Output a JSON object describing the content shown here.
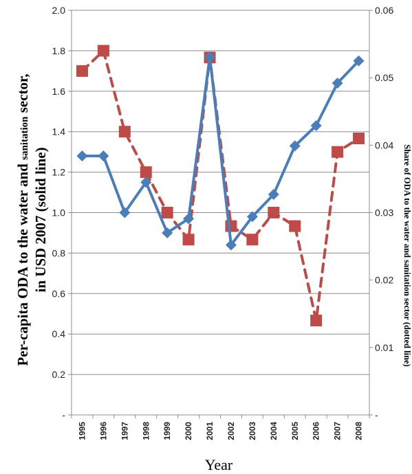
{
  "chart_data": {
    "type": "line",
    "x": [
      "1995",
      "1996",
      "1997",
      "1998",
      "1999",
      "2000",
      "2001",
      "2002",
      "2003",
      "2004",
      "2005",
      "2006",
      "2007",
      "2008"
    ],
    "xlabel": "Year",
    "ylabel_left_parts": [
      "Per-capita ODA to the water and ",
      "sanitation",
      " sector,"
    ],
    "ylabel_left_line2": "in USD 2007 (solid line)",
    "ylabel_right": "Share of ODA to the water and sanitation sector (dotted line)",
    "y_left": {
      "ticks": [
        0,
        0.2,
        0.4,
        0.6,
        0.8,
        1.0,
        1.2,
        1.4,
        1.6,
        1.8,
        2.0
      ],
      "tick_labels": [
        "-",
        "0.2",
        "0.4",
        "0.6",
        "0.8",
        "1.0",
        "1.2",
        "1.4",
        "1.6",
        "1.8",
        "2.0"
      ],
      "lim": [
        0,
        2.0
      ]
    },
    "y_right": {
      "ticks": [
        0,
        0.01,
        0.02,
        0.03,
        0.04,
        0.05,
        0.06
      ],
      "tick_labels": [
        "-",
        "0.01",
        "0.02",
        "0.03",
        "0.04",
        "0.05",
        "0.06"
      ],
      "lim": [
        0,
        0.06
      ]
    },
    "series": [
      {
        "axis": "left",
        "style": "solid",
        "color": "#4a7ebb",
        "marker": "diamond",
        "values": [
          1.28,
          1.28,
          1.0,
          1.15,
          0.9,
          0.97,
          1.77,
          0.84,
          0.98,
          1.09,
          1.33,
          1.43,
          1.64,
          1.75
        ]
      },
      {
        "axis": "right",
        "style": "dashed",
        "color": "#be4b48",
        "marker": "square",
        "values": [
          0.051,
          0.054,
          0.042,
          0.036,
          0.03,
          0.026,
          0.053,
          0.028,
          0.026,
          0.03,
          0.028,
          0.014,
          0.039,
          0.041
        ]
      }
    ]
  }
}
